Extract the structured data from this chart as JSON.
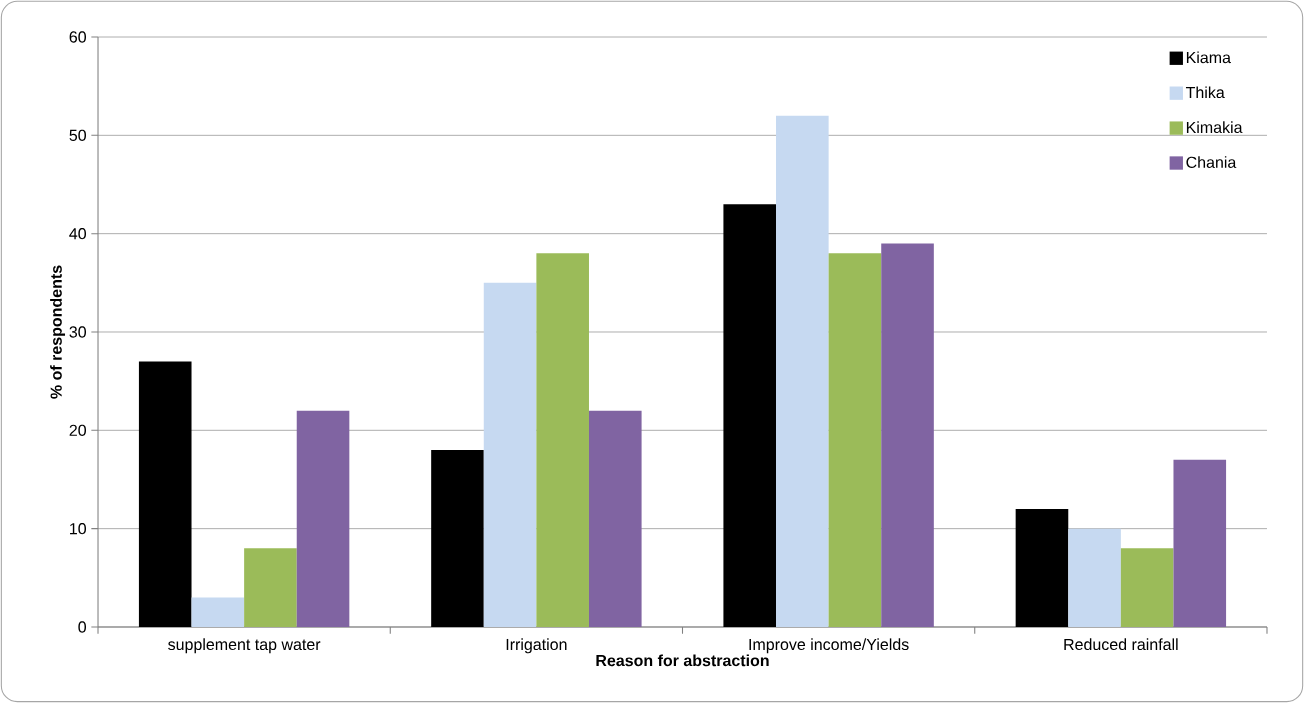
{
  "chart_data": {
    "type": "bar",
    "xlabel": "Reason for abstraction",
    "ylabel": "% of respondents",
    "categories": [
      "supplement tap water",
      "Irrigation",
      "Improve income/Yields",
      "Reduced rainfall"
    ],
    "series": [
      {
        "name": "Kiama",
        "color": "#000000",
        "values": [
          27,
          18,
          43,
          12
        ]
      },
      {
        "name": "Thika",
        "color": "#c6d9f1",
        "values": [
          3,
          35,
          52,
          10
        ]
      },
      {
        "name": "Kimakia",
        "color": "#9bbb59",
        "values": [
          8,
          38,
          38,
          8
        ]
      },
      {
        "name": "Chania",
        "color": "#8064a2",
        "values": [
          22,
          22,
          39,
          17
        ]
      }
    ],
    "ylim": [
      0,
      60
    ],
    "yticks": [
      0,
      10,
      20,
      30,
      40,
      50,
      60
    ],
    "grid": "y",
    "legend": "top right"
  }
}
